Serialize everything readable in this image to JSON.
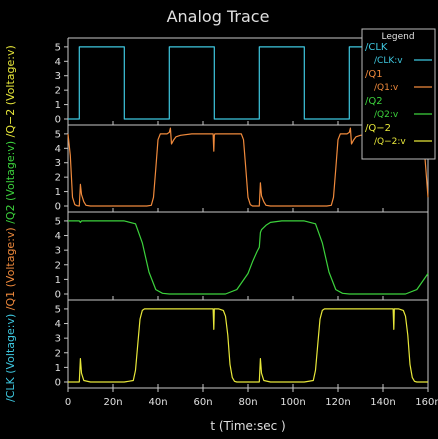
{
  "window": {
    "title": "Analog Trace"
  },
  "axes": {
    "xlabel": "t (Time:sec )",
    "ylabels": [
      {
        "prefix": "/CLK (Voltage:v)",
        "color": "#3ec8e0"
      },
      {
        "prefix": "/Q1 (Voltage:v)",
        "color": "#f08a3c"
      },
      {
        "prefix": "/Q2 (Voltage:v)",
        "color": "#3cd23c"
      },
      {
        "prefix": "/Q−2 (Voltage:v)",
        "color": "#e8e83a"
      }
    ]
  },
  "legend": {
    "title": "Legend",
    "entries": [
      {
        "name": "/CLK",
        "sub": "/CLK:v",
        "color": "#3ec8e0"
      },
      {
        "name": "/Q1",
        "sub": "/Q1:v",
        "color": "#f08a3c"
      },
      {
        "name": "/Q2",
        "sub": "/Q2:v",
        "color": "#3cd23c"
      },
      {
        "name": "/Q−2",
        "sub": "/Q−2:v",
        "color": "#e8e83a"
      }
    ]
  },
  "colors": {
    "background": "#000000",
    "axis": "#c8c8c8",
    "text": "#e0e0e0"
  },
  "chart_data": {
    "type": "line",
    "title": "Analog Trace",
    "xlabel": "t (Time:sec )",
    "x_unit": "n",
    "xlim": [
      0,
      160
    ],
    "x_ticks": [
      "0",
      "20n",
      "40n",
      "60n",
      "80n",
      "100n",
      "120n",
      "140n",
      "160n"
    ],
    "y_ticks": [
      "0",
      "1",
      "2",
      "3",
      "4",
      "5"
    ],
    "ylim": [
      0,
      5.2
    ],
    "grid": false,
    "legend_position": "top-right",
    "series": [
      {
        "name": "/CLK",
        "ylabel": "/CLK (Voltage:v)",
        "color": "#3ec8e0",
        "x": [
          0,
          5,
          5,
          25,
          25,
          45,
          45,
          65,
          65,
          85,
          85,
          105,
          105,
          125,
          125,
          145,
          145,
          160
        ],
        "y": [
          0,
          0,
          5,
          5,
          0,
          0,
          5,
          5,
          0,
          0,
          5,
          5,
          0,
          0,
          5,
          5,
          0,
          0
        ]
      },
      {
        "name": "/Q1",
        "ylabel": "/Q1 (Voltage:v)",
        "color": "#f08a3c",
        "x": [
          0,
          1,
          2,
          3,
          4,
          5,
          5.5,
          6,
          7,
          8,
          10,
          15,
          20,
          25,
          30,
          35,
          37,
          38,
          39,
          40,
          41,
          42,
          43,
          44,
          45,
          45.5,
          46,
          47,
          48,
          50,
          55,
          60,
          64.5,
          64.8,
          65,
          65.3,
          70,
          75,
          77,
          78,
          79,
          80,
          81,
          82,
          83,
          84,
          85,
          85.5,
          86,
          87,
          88,
          90,
          95,
          100,
          105,
          110,
          115,
          117,
          118,
          119,
          120,
          121,
          122,
          123,
          124,
          125,
          125.5,
          126,
          127,
          128,
          130,
          135,
          140,
          144.5,
          144.8,
          145,
          145.3,
          150,
          155,
          157,
          158,
          159,
          160
        ],
        "y": [
          5,
          3.5,
          0.6,
          0.1,
          0.02,
          0,
          1.5,
          0.8,
          0.3,
          0.05,
          0,
          0,
          0,
          0,
          0,
          0,
          0.05,
          0.6,
          2.6,
          4.6,
          5,
          5,
          5,
          5,
          5.1,
          5.4,
          4.3,
          4.6,
          4.8,
          4.9,
          5,
          5,
          5,
          3.8,
          4.9,
          5,
          5,
          5,
          5,
          4.6,
          2.6,
          0.6,
          0.1,
          0,
          0,
          0,
          0,
          1.6,
          0.7,
          0.3,
          0.05,
          0,
          0,
          0,
          0,
          0,
          0,
          0.05,
          0.6,
          2.6,
          4.6,
          5,
          5,
          5,
          5,
          5.1,
          5.4,
          4.3,
          4.6,
          4.8,
          4.9,
          5,
          5,
          5,
          3.8,
          4.9,
          5,
          5,
          5,
          5,
          4.6,
          2.6,
          0.6
        ]
      },
      {
        "name": "/Q2",
        "ylabel": "/Q2 (Voltage:v)",
        "color": "#3cd23c",
        "x": [
          0,
          2,
          5,
          5.5,
          6,
          10,
          15,
          20,
          25,
          30,
          33,
          36,
          39,
          42,
          45,
          48,
          50,
          55,
          60,
          65,
          70,
          75,
          80,
          82,
          84,
          85,
          85.5,
          86,
          88,
          90,
          95,
          100,
          105,
          110,
          113,
          116,
          119,
          122,
          125,
          128,
          130,
          135,
          140,
          145,
          150,
          155,
          160
        ],
        "y": [
          5,
          5,
          5,
          4.9,
          5,
          5,
          5,
          5,
          5,
          4.8,
          3.5,
          1.5,
          0.3,
          0.05,
          0,
          0,
          0,
          0,
          0,
          0,
          0,
          0.3,
          1.4,
          2.2,
          2.9,
          3.2,
          4.2,
          4.4,
          4.7,
          4.9,
          5,
          5,
          5,
          4.8,
          3.5,
          1.5,
          0.3,
          0.05,
          0,
          0,
          0,
          0,
          0,
          0,
          0,
          0.3,
          1.4
        ]
      },
      {
        "name": "/Q−2",
        "ylabel": "/Q−2 (Voltage:v)",
        "color": "#e8e83a",
        "x": [
          0,
          5,
          5.5,
          6,
          7,
          10,
          15,
          20,
          25,
          29,
          30,
          31,
          32,
          33,
          34,
          35,
          40,
          45,
          50,
          55,
          60,
          64.5,
          64.8,
          65,
          65.3,
          67,
          69,
          70,
          71,
          72,
          73,
          74,
          75,
          80,
          85,
          85.5,
          86,
          87,
          90,
          95,
          100,
          105,
          109,
          110,
          111,
          112,
          113,
          114,
          115,
          120,
          125,
          130,
          135,
          140,
          144.5,
          144.8,
          145,
          145.3,
          147,
          149,
          150,
          151,
          152,
          153,
          154,
          155,
          160
        ],
        "y": [
          0,
          0,
          1.6,
          0.6,
          0.1,
          0,
          0,
          0,
          0,
          0.1,
          0.8,
          2.6,
          4.3,
          4.9,
          5,
          5,
          5,
          5,
          5,
          5,
          5,
          5,
          3.6,
          5,
          5,
          5,
          4.9,
          4.5,
          3.2,
          1.2,
          0.3,
          0.05,
          0,
          0,
          0,
          1.6,
          0.6,
          0.1,
          0,
          0,
          0,
          0,
          0.1,
          0.8,
          2.6,
          4.3,
          4.9,
          5,
          5,
          5,
          5,
          5,
          5,
          5,
          5,
          3.6,
          5,
          5,
          5,
          4.9,
          4.5,
          3.2,
          1.2,
          0.3,
          0.05,
          0,
          0
        ]
      }
    ]
  }
}
